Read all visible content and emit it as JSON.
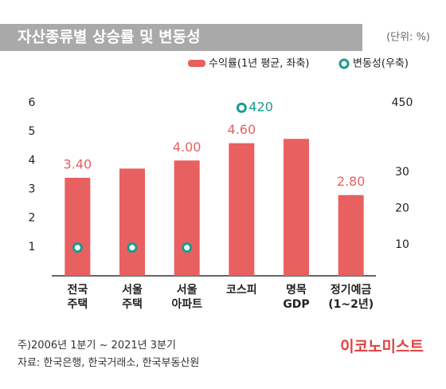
{
  "chart_data": {
    "type": "bar",
    "title": "자산종류별 상승률 및 변동성",
    "unit": "(단위: %)",
    "categories": [
      "전국\n주택",
      "서울\n주택",
      "서울\n아파트",
      "코스피",
      "명목\nGDP",
      "정기예금\n(1~2년)"
    ],
    "series": [
      {
        "name": "수익률(1년 평균, 좌축)",
        "type": "bar",
        "color": "#e8605f",
        "values": [
          3.4,
          3.72,
          4.0,
          4.6,
          4.75,
          2.8
        ],
        "value_labels": [
          "3.40",
          null,
          "4.00",
          "4.60",
          null,
          "2.80"
        ]
      },
      {
        "name": "변동성(우축)",
        "type": "scatter",
        "axis": "y2",
        "color": "#1a9b8f",
        "values": [
          9.2,
          9.2,
          9.2,
          420,
          null,
          null
        ],
        "value_labels": [
          null,
          null,
          null,
          "420",
          null,
          null
        ]
      }
    ],
    "ylim": [
      0,
      6
    ],
    "yticks": [
      1,
      2,
      3,
      4,
      5,
      6
    ],
    "y2lim": [
      0,
      450
    ],
    "y2ticks": [
      10,
      20,
      30,
      450
    ],
    "notes": [
      "주)2006년 1분기 ~ 2021년 3분기",
      "자료: 한국은행, 한국거래소, 한국부동산원"
    ],
    "source_logo": "이코노미스트"
  }
}
